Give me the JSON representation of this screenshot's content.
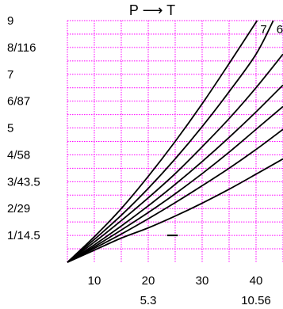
{
  "chart_data": {
    "type": "line",
    "title": "P ⟶ T",
    "xlabel": "",
    "ylabel": "",
    "xlim": [
      5,
      45
    ],
    "ylim": [
      0,
      9
    ],
    "grid": true,
    "grid_color": "#ff00ff",
    "line_color": "#000000",
    "x_ticks": [
      {
        "value": 10,
        "label": "10",
        "sublabel": ""
      },
      {
        "value": 20,
        "label": "20",
        "sublabel": "5.3"
      },
      {
        "value": 30,
        "label": "30",
        "sublabel": ""
      },
      {
        "value": 40,
        "label": "40",
        "sublabel": "10.56"
      }
    ],
    "y_ticks": [
      {
        "value": 1,
        "label": "1/14.5"
      },
      {
        "value": 2,
        "label": "2/29"
      },
      {
        "value": 3,
        "label": "3/43.5"
      },
      {
        "value": 4,
        "label": "4/58"
      },
      {
        "value": 5,
        "label": "5"
      },
      {
        "value": 6,
        "label": "6/87"
      },
      {
        "value": 7,
        "label": "7"
      },
      {
        "value": 8,
        "label": "8/116"
      },
      {
        "value": 9,
        "label": "9"
      }
    ],
    "series": [
      {
        "name": "7",
        "x": [
          5,
          10,
          15,
          20,
          25,
          30,
          35,
          40.2
        ],
        "y": [
          0,
          0.95,
          2.0,
          3.2,
          4.5,
          5.9,
          7.4,
          9.0
        ]
      },
      {
        "name": "6",
        "x": [
          5,
          10,
          15,
          20,
          25,
          30,
          35,
          40,
          43.2
        ],
        "y": [
          0,
          0.85,
          1.75,
          2.75,
          3.85,
          5.05,
          6.35,
          7.75,
          9.0
        ]
      },
      {
        "name": "",
        "x": [
          5,
          10,
          15,
          20,
          25,
          30,
          35,
          40,
          45
        ],
        "y": [
          0,
          0.75,
          1.55,
          2.4,
          3.3,
          4.3,
          5.35,
          6.5,
          7.75
        ]
      },
      {
        "name": "",
        "x": [
          5,
          10,
          15,
          20,
          25,
          30,
          35,
          40,
          45
        ],
        "y": [
          0,
          0.65,
          1.35,
          2.1,
          2.9,
          3.75,
          4.65,
          5.6,
          6.6
        ]
      },
      {
        "name": "",
        "x": [
          5,
          10,
          15,
          20,
          25,
          30,
          35,
          40,
          45
        ],
        "y": [
          0,
          0.58,
          1.2,
          1.85,
          2.55,
          3.3,
          4.1,
          4.95,
          5.8
        ]
      },
      {
        "name": "",
        "x": [
          5,
          10,
          15,
          20,
          25,
          30,
          35,
          40,
          45
        ],
        "y": [
          0,
          0.52,
          1.05,
          1.62,
          2.22,
          2.85,
          3.5,
          4.2,
          4.95
        ]
      },
      {
        "name": "",
        "x": [
          5,
          10,
          15,
          20,
          25,
          30,
          35,
          40,
          45
        ],
        "y": [
          0,
          0.45,
          0.9,
          1.28,
          1.72,
          2.2,
          2.72,
          3.28,
          3.85
        ]
      }
    ],
    "annotations": [
      {
        "type": "segment",
        "x": [
          23.5,
          25.5
        ],
        "y": [
          1.0,
          1.0
        ]
      }
    ]
  }
}
